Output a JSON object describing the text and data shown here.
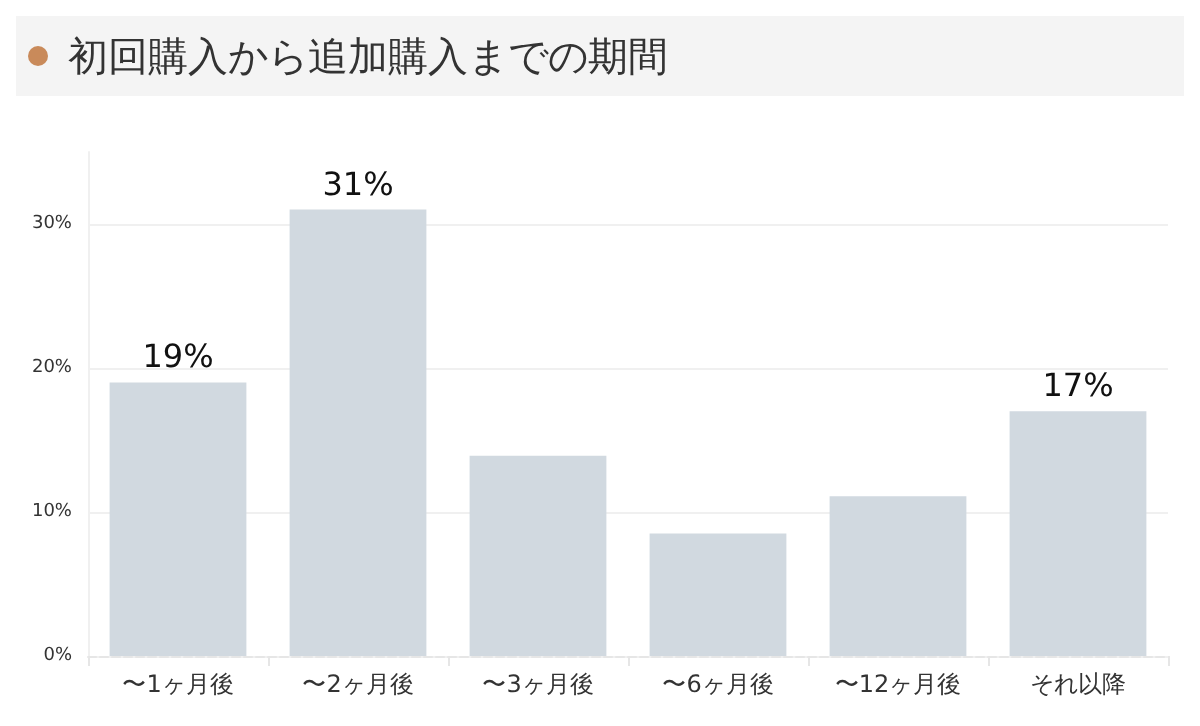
{
  "chart_data": {
    "type": "bar",
    "title": "初回購入から追加購入までの期間",
    "categories": [
      "〜1ヶ月後",
      "〜2ヶ月後",
      "〜3ヶ月後",
      "〜6ヶ月後",
      "〜12ヶ月後",
      "それ以降"
    ],
    "values": [
      19,
      31,
      13.9,
      8.5,
      11.1,
      17
    ],
    "value_labels": [
      "19%",
      "31%",
      null,
      null,
      null,
      "17%"
    ],
    "color": "#d1d9e0",
    "ylim": [
      0,
      35
    ],
    "yticks": [
      {
        "value": 0,
        "label": "0%"
      },
      {
        "value": 10,
        "label": "10%"
      },
      {
        "value": 20,
        "label": "20%"
      },
      {
        "value": 30,
        "label": "30%"
      }
    ],
    "grid": "y"
  }
}
